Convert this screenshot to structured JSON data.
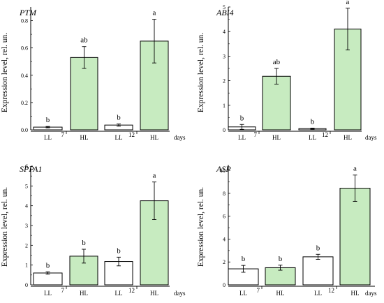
{
  "colors": {
    "LL": "#ffffff",
    "HL": "#c7ebc0",
    "outline": "#000000"
  },
  "chart_data": [
    {
      "type": "bar",
      "title": "PTM",
      "ylabel": "Expression level, rel. un.",
      "xlabel": "days",
      "categories": [
        "LL",
        "HL",
        "LL",
        "HL"
      ],
      "group_labels": [
        "7",
        "12"
      ],
      "values": [
        0.02,
        0.53,
        0.035,
        0.65
      ],
      "errors": [
        0.005,
        0.08,
        0.008,
        0.16
      ],
      "significance": [
        "b",
        "ab",
        "b",
        "a"
      ],
      "ylim": [
        0,
        0.9
      ],
      "yticks": [
        "0.0",
        "0.2",
        "0.4",
        "0.6",
        "0.8"
      ]
    },
    {
      "type": "bar",
      "title": "ABI4",
      "ylabel": "Expression level, rel. un.",
      "xlabel": "days",
      "categories": [
        "LL",
        "HL",
        "LL",
        "HL"
      ],
      "group_labels": [
        "7",
        "12"
      ],
      "values": [
        0.12,
        2.18,
        0.05,
        4.1
      ],
      "errors": [
        0.1,
        0.32,
        0.02,
        0.85
      ],
      "significance": [
        "b",
        "ab",
        "b",
        "a"
      ],
      "ylim": [
        0,
        5
      ],
      "yticks": [
        "0",
        "1",
        "2",
        "3",
        "4",
        "5"
      ]
    },
    {
      "type": "bar",
      "title": "SPPA1",
      "ylabel": "Expression level, rel. un.",
      "xlabel": "days",
      "categories": [
        "LL",
        "HL",
        "LL",
        "HL"
      ],
      "group_labels": [
        "7",
        "12"
      ],
      "values": [
        0.6,
        1.45,
        1.18,
        4.25
      ],
      "errors": [
        0.06,
        0.35,
        0.22,
        0.95
      ],
      "significance": [
        "b",
        "b",
        "b",
        "a"
      ],
      "ylim": [
        0,
        6
      ],
      "yticks": [
        "0",
        "1",
        "2",
        "3",
        "4",
        "5",
        "6"
      ]
    },
    {
      "type": "bar",
      "title": "ASP",
      "ylabel": "Expression level, rel. un.",
      "xlabel": "days",
      "categories": [
        "LL",
        "HL",
        "LL",
        "HL"
      ],
      "group_labels": [
        "7",
        "12"
      ],
      "values": [
        1.4,
        1.5,
        2.45,
        8.45
      ],
      "errors": [
        0.3,
        0.22,
        0.22,
        1.15
      ],
      "significance": [
        "b",
        "b",
        "b",
        "a"
      ],
      "ylim": [
        0,
        10.5
      ],
      "yticks": [
        "0",
        "2",
        "4",
        "6",
        "8",
        "10"
      ]
    }
  ]
}
